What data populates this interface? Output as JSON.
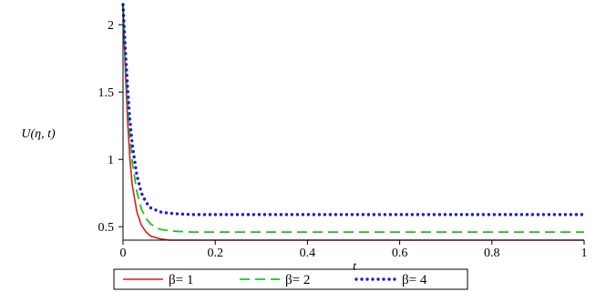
{
  "chart_data": {
    "type": "line",
    "xlabel": "t",
    "ylabel": "U(η, t)",
    "xlim": [
      0,
      1
    ],
    "ylim": [
      0.4,
      2.15
    ],
    "xticks": [
      0,
      0.2,
      0.4,
      0.6,
      0.8,
      1
    ],
    "xtick_labels": [
      "0",
      "0.2",
      "0.4",
      "0.6",
      "0.8",
      "1"
    ],
    "yticks": [
      0.5,
      1,
      1.5,
      2
    ],
    "ytick_labels": [
      "0.5",
      "1",
      "1.5",
      "2"
    ],
    "grid": false,
    "legend_position": "bottom",
    "series": [
      {
        "name": "β= 1",
        "color": "#e31a1c",
        "dash": "solid",
        "x": [
          0,
          0.005,
          0.01,
          0.015,
          0.02,
          0.03,
          0.04,
          0.05,
          0.06,
          0.08,
          0.1,
          0.12,
          0.15,
          0.2,
          0.4,
          0.6,
          0.8,
          1.0
        ],
        "y": [
          2.15,
          1.66,
          1.28,
          1.0,
          0.81,
          0.61,
          0.51,
          0.46,
          0.43,
          0.41,
          0.4,
          0.4,
          0.4,
          0.4,
          0.4,
          0.4,
          0.4,
          0.4
        ]
      },
      {
        "name": "β= 2",
        "color": "#1ac41a",
        "dash": "dashed",
        "x": [
          0,
          0.005,
          0.01,
          0.015,
          0.02,
          0.03,
          0.04,
          0.05,
          0.06,
          0.08,
          0.1,
          0.12,
          0.15,
          0.2,
          0.4,
          0.6,
          0.8,
          1.0
        ],
        "y": [
          2.15,
          1.75,
          1.42,
          1.17,
          0.98,
          0.76,
          0.63,
          0.56,
          0.52,
          0.48,
          0.47,
          0.465,
          0.46,
          0.46,
          0.46,
          0.46,
          0.46,
          0.46
        ]
      },
      {
        "name": "β= 4",
        "color": "#1a1ae6",
        "dash": "dotted",
        "x": [
          0,
          0.005,
          0.01,
          0.015,
          0.02,
          0.03,
          0.04,
          0.05,
          0.06,
          0.08,
          0.1,
          0.12,
          0.15,
          0.2,
          0.4,
          0.6,
          0.8,
          1.0
        ],
        "y": [
          2.15,
          1.82,
          1.52,
          1.29,
          1.11,
          0.88,
          0.75,
          0.68,
          0.64,
          0.61,
          0.6,
          0.595,
          0.59,
          0.59,
          0.59,
          0.59,
          0.59,
          0.59
        ]
      }
    ]
  }
}
